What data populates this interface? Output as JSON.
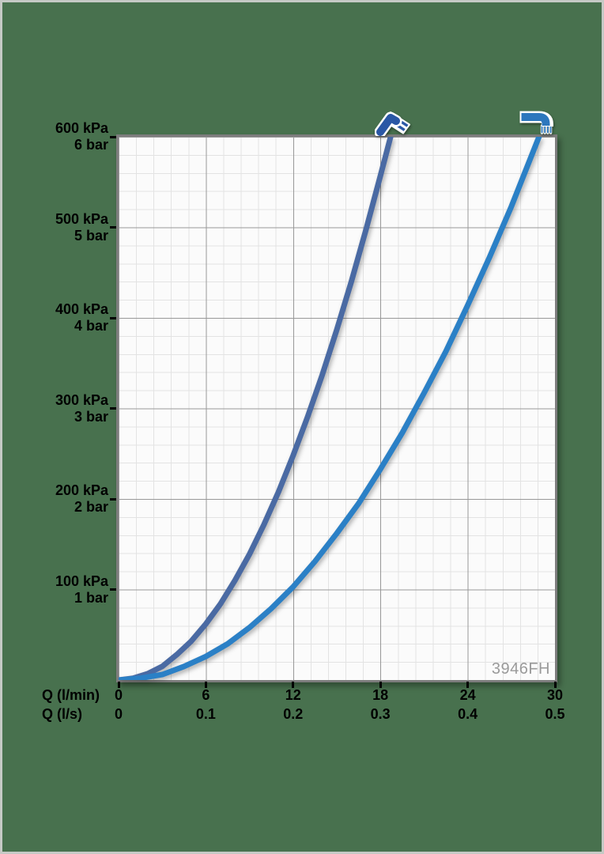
{
  "frame": {
    "background_color": "#48714e",
    "border_color": "#c5c9c5"
  },
  "watermark_color": "#9a9a9a",
  "icons": {
    "hand_shower_color": "#2a57a5",
    "spout_color": "#2d77bd",
    "outline_color": "#ffffff"
  },
  "chart_data": {
    "type": "line",
    "title": "",
    "watermark": "3946FH",
    "grid": {
      "background": "#fbfbfb",
      "minor_color": "#e3e3e3",
      "major_color": "#989898",
      "border_color": "#7d7d7d",
      "grid_on": true
    },
    "x_axis": {
      "min": 0,
      "max": 30,
      "major_step": 6,
      "minor_divisions": 5,
      "rows": [
        {
          "label": "Q (l/min)",
          "ticks": [
            "0",
            "6",
            "12",
            "18",
            "24",
            "30"
          ]
        },
        {
          "label": "Q (l/s)",
          "ticks": [
            "0",
            "0.1",
            "0.2",
            "0.3",
            "0.4",
            "0.5"
          ]
        }
      ]
    },
    "y_axis": {
      "min": 0,
      "max": 600,
      "major_step": 100,
      "minor_divisions": 5,
      "unit_primary": "kPa",
      "unit_secondary": "bar",
      "ticks": [
        {
          "value": 600,
          "kpa": "600 kPa",
          "bar": "6 bar"
        },
        {
          "value": 500,
          "kpa": "500 kPa",
          "bar": "5 bar"
        },
        {
          "value": 400,
          "kpa": "400 kPa",
          "bar": "4 bar"
        },
        {
          "value": 300,
          "kpa": "300 kPa",
          "bar": "3 bar"
        },
        {
          "value": 200,
          "kpa": "200 kPa",
          "bar": "2 bar"
        },
        {
          "value": 100,
          "kpa": "100 kPa",
          "bar": "1 bar"
        }
      ]
    },
    "series": [
      {
        "name": "hand shower",
        "icon": "hand-shower-icon",
        "color": "#4a6aa3",
        "points_units": [
          "l/min",
          "kPa"
        ],
        "points": [
          [
            0,
            0
          ],
          [
            1,
            2
          ],
          [
            2,
            7
          ],
          [
            3,
            15
          ],
          [
            4,
            28
          ],
          [
            5,
            43
          ],
          [
            6,
            62
          ],
          [
            7,
            84
          ],
          [
            8,
            110
          ],
          [
            9,
            139
          ],
          [
            10,
            172
          ],
          [
            11,
            208
          ],
          [
            12,
            248
          ],
          [
            13,
            291
          ],
          [
            14,
            337
          ],
          [
            15,
            387
          ],
          [
            16,
            440
          ],
          [
            17,
            497
          ],
          [
            18,
            557
          ],
          [
            18.7,
            600
          ]
        ]
      },
      {
        "name": "spout",
        "icon": "spout-icon",
        "color": "#2b80c6",
        "points_units": [
          "l/min",
          "kPa"
        ],
        "points": [
          [
            0,
            0
          ],
          [
            1.5,
            2
          ],
          [
            3,
            6
          ],
          [
            4.5,
            15
          ],
          [
            6,
            26
          ],
          [
            7.5,
            40
          ],
          [
            9,
            58
          ],
          [
            10.5,
            79
          ],
          [
            12,
            103
          ],
          [
            13.5,
            131
          ],
          [
            15,
            162
          ],
          [
            16.5,
            195
          ],
          [
            18,
            233
          ],
          [
            19.5,
            273
          ],
          [
            21,
            317
          ],
          [
            22.5,
            363
          ],
          [
            24,
            414
          ],
          [
            25.5,
            467
          ],
          [
            27,
            523
          ],
          [
            28.9,
            600
          ]
        ]
      }
    ]
  }
}
